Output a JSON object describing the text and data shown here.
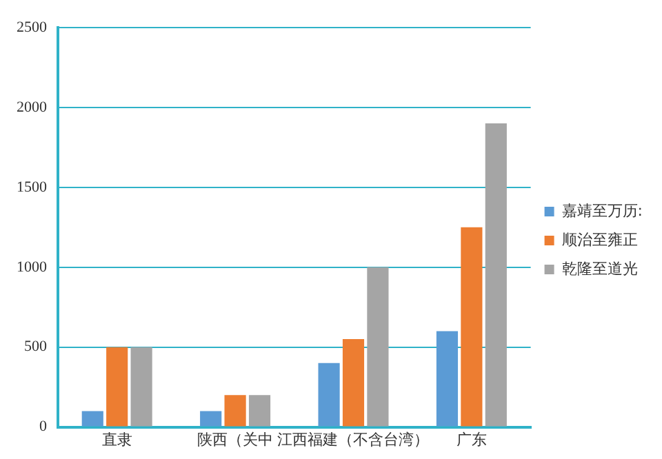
{
  "chart_data": {
    "type": "bar",
    "categories": [
      "直隶",
      "陕西（关中",
      "江西福建（不含台湾）",
      "广东"
    ],
    "series": [
      {
        "name": "嘉靖至万历:",
        "color": "#5b9bd5",
        "values": [
          100,
          100,
          400,
          600
        ]
      },
      {
        "name": "顺治至雍正",
        "color": "#ed7d31",
        "values": [
          500,
          200,
          550,
          1250
        ]
      },
      {
        "name": "乾隆至道光",
        "color": "#a5a5a5",
        "values": [
          500,
          200,
          1000,
          1900
        ]
      }
    ],
    "ylim": [
      0,
      2500
    ],
    "yticks": [
      0,
      500,
      1000,
      1500,
      2000,
      2500
    ],
    "grid": "y",
    "legend": "right"
  }
}
